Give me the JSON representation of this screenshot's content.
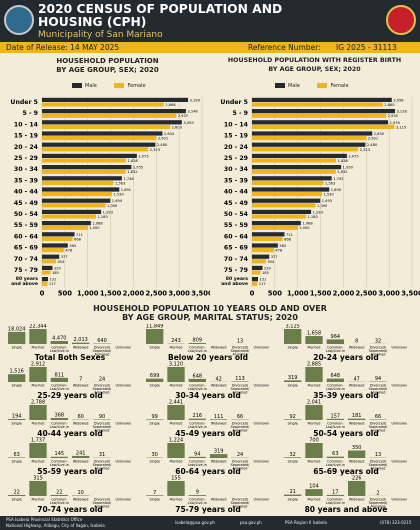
{
  "header": {
    "title_line1": "2020 CENSUS OF POPULATION AND",
    "title_line2": "HOUSING (CPH)",
    "subtitle": "Municipality of San Mariano"
  },
  "release": {
    "date_label": "Date of Release: 14 MAY 2025",
    "ref_label": "Reference Number:",
    "ref_number": "IG 2025 - 31113"
  },
  "colors": {
    "male": "#232b30",
    "female": "#f0b323",
    "marital": "#6b7d4a",
    "accent": "#f0b323"
  },
  "legend": {
    "male": "Male",
    "female": "Female"
  },
  "chart_data": [
    {
      "type": "bar",
      "orientation": "horizontal",
      "title": "HOUSEHOLD POPULATION\nBY AGE GROUP, SEX; 2020",
      "categories": [
        "Under 5",
        "5 - 9",
        "10 - 14",
        "15 - 19",
        "20 - 24",
        "25 - 29",
        "30 - 34",
        "35 - 39",
        "40 - 44",
        "45 - 49",
        "50 - 54",
        "55 - 59",
        "60 - 64",
        "65 - 69",
        "70 - 74",
        "75 - 79",
        "80 years\nand above"
      ],
      "series": [
        {
          "name": "Male",
          "values": [
            3196,
            3148,
            3059,
            2634,
            2480,
            2075,
            1955,
            1748,
            1691,
            1494,
            1293,
            1068,
            711,
            565,
            377,
            229,
            131
          ]
        },
        {
          "name": "Female",
          "values": [
            2666,
            2937,
            2803,
            2501,
            2323,
            1838,
            1832,
            1563,
            1530,
            1390,
            1180,
            1000,
            668,
            478,
            304,
            185,
            117
          ]
        }
      ],
      "xlim": [
        0,
        3500
      ],
      "xticks": [
        "0",
        "500",
        "1,000",
        "1,500",
        "2,000",
        "2,500",
        "3,000",
        "3,500"
      ]
    },
    {
      "type": "bar",
      "orientation": "horizontal",
      "title": "HOUSEHOLD POPULATION WITH REGISTER BIRTH\nBY AGE GROUP, SEX; 2020",
      "categories": [
        "Under 5",
        "5 - 9",
        "10 - 14",
        "15 - 19",
        "20 - 24",
        "25 - 29",
        "30 - 34",
        "35 - 39",
        "40 - 44",
        "45 - 49",
        "50 - 54",
        "55 - 59",
        "60 - 64",
        "65 - 69",
        "70 - 74",
        "75 - 79",
        "80 years\nand above"
      ],
      "series": [
        {
          "name": "Male",
          "values": [
            3058,
            3128,
            2976,
            2630,
            2480,
            2075,
            1950,
            1743,
            1690,
            1493,
            1293,
            1068,
            711,
            565,
            377,
            229,
            131
          ]
        },
        {
          "name": "Female",
          "values": [
            2860,
            2935,
            3115,
            2501,
            2323,
            1838,
            1832,
            1563,
            1530,
            1390,
            1180,
            1000,
            668,
            478,
            304,
            185,
            117
          ]
        }
      ],
      "xlim": [
        0,
        3500
      ],
      "xticks": [
        "0",
        "500",
        "1,000",
        "1,500",
        "2,000",
        "2,500",
        "3,000",
        "3,500"
      ]
    },
    {
      "type": "bar",
      "title": "HOUSEHOLD POPULATION 10 YEARS OLD AND OVER\nBY AGE GROUP, MARITAL STATUS; 2020",
      "categories": [
        "Single",
        "Married",
        "Common-Law/Live-in",
        "Widowed",
        "Divorced/Separated/Annulled",
        "Unknown"
      ],
      "panels": [
        {
          "label": "Total Both Sexes",
          "values": [
            18024,
            22344,
            4470,
            2013,
            640,
            0
          ],
          "labels": [
            "18,024",
            "22,344",
            "4,470",
            "2,013",
            "640",
            ""
          ]
        },
        {
          "label": "Below 20 years old",
          "values": [
            11849,
            243,
            809,
            0,
            13,
            0
          ],
          "labels": [
            "11,849",
            "243",
            "809",
            "",
            "13",
            ""
          ]
        },
        {
          "label": "20-24 years old",
          "values": [
            3125,
            1658,
            964,
            8,
            32,
            0
          ],
          "labels": [
            "3,125",
            "1,658",
            "964",
            "8",
            "32",
            ""
          ]
        },
        {
          "label": "25-29 years old",
          "values": [
            1516,
            2912,
            811,
            7,
            24,
            0
          ],
          "labels": [
            "1,516",
            "2,912",
            "811",
            "7",
            "24",
            ""
          ]
        },
        {
          "label": "30-34 years old",
          "values": [
            699,
            3120,
            648,
            42,
            113,
            0
          ],
          "labels": [
            "699",
            "3,120",
            "648",
            "42",
            "113",
            ""
          ]
        },
        {
          "label": "35-39 years old",
          "values": [
            319,
            2885,
            648,
            47,
            94,
            0
          ],
          "labels": [
            "319",
            "2,885",
            "648",
            "47",
            "94",
            ""
          ]
        },
        {
          "label": "40-44 years old",
          "values": [
            194,
            2788,
            368,
            60,
            90,
            0
          ],
          "labels": [
            "194",
            "2,788",
            "368",
            "60",
            "90",
            ""
          ]
        },
        {
          "label": "45-49 years old",
          "values": [
            99,
            2441,
            216,
            111,
            66,
            0
          ],
          "labels": [
            "99",
            "2,441",
            "216",
            "111",
            "66",
            ""
          ]
        },
        {
          "label": "50-54 years old",
          "values": [
            92,
            2041,
            157,
            181,
            66,
            0
          ],
          "labels": [
            "92",
            "2,041",
            "157",
            "181",
            "66",
            ""
          ]
        },
        {
          "label": "55-59 years old",
          "values": [
            63,
            1737,
            145,
            241,
            31,
            0
          ],
          "labels": [
            "63",
            "1,737",
            "145",
            "241",
            "31",
            ""
          ]
        },
        {
          "label": "60-64 years old",
          "values": [
            30,
            1224,
            94,
            319,
            24,
            0
          ],
          "labels": [
            "30",
            "1,224",
            "94",
            "319",
            "24",
            ""
          ]
        },
        {
          "label": "65-69 years old",
          "values": [
            32,
            700,
            63,
            350,
            13,
            0
          ],
          "labels": [
            "32",
            "700",
            "63",
            "350",
            "13",
            ""
          ]
        },
        {
          "label": "70-74 years old",
          "values": [
            22,
            315,
            22,
            10,
            0,
            0
          ],
          "labels": [
            "22",
            "315",
            "22",
            "10",
            "",
            ""
          ]
        },
        {
          "label": "75-79 years old",
          "values": [
            7,
            155,
            9,
            0,
            0,
            0
          ],
          "labels": [
            "7",
            "155",
            "9",
            "",
            "",
            ""
          ]
        },
        {
          "label": "80 years and above",
          "values": [
            21,
            104,
            17,
            226,
            2,
            0
          ],
          "labels": [
            "21",
            "104",
            "17",
            "226",
            "2",
            ""
          ]
        }
      ]
    }
  ],
  "footer": {
    "office": "PSA Isabela Provincial Statistics Office",
    "address": "National Highway, Alibagu, City of Ilagan, Isabela",
    "email": "isabela@psa.gov.ph",
    "web": "psa.gov.ph",
    "fb": "PSA Region II Isabela",
    "phone": "(078) 323-0215"
  }
}
